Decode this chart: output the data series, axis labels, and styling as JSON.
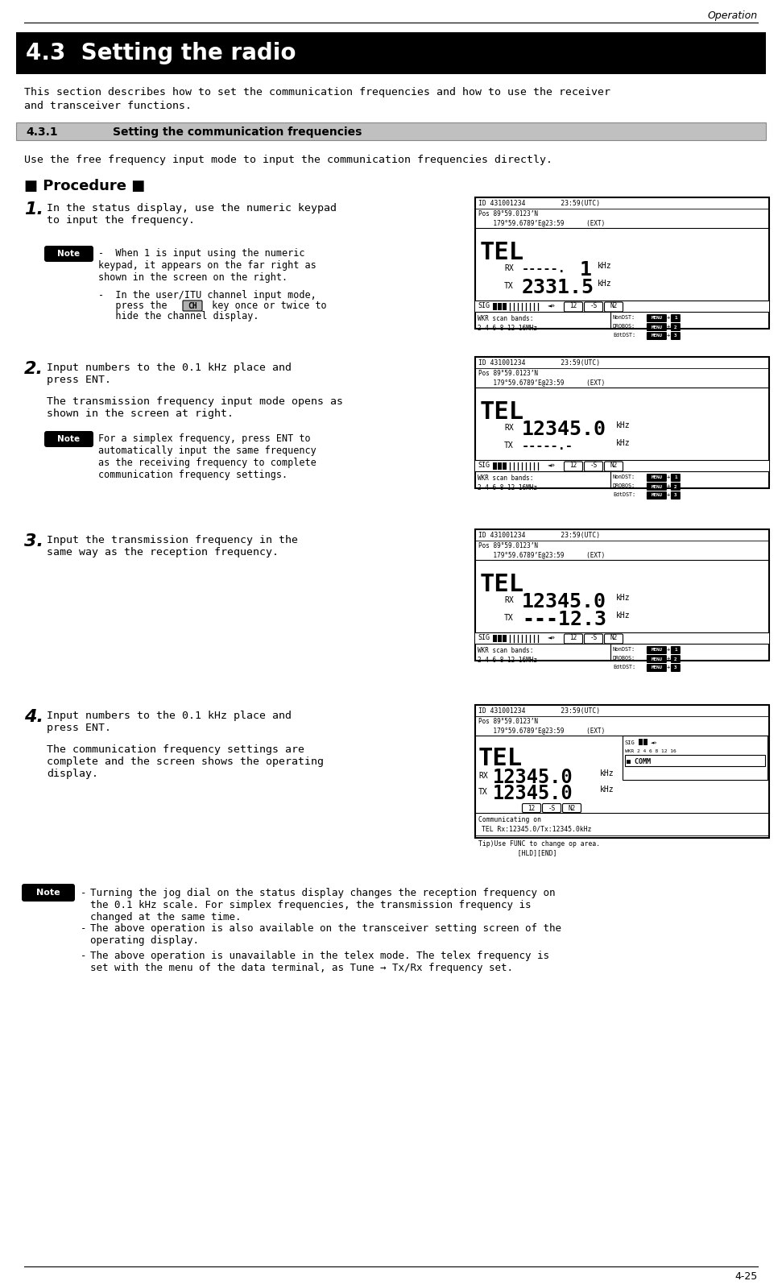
{
  "page_header": "Operation",
  "page_footer": "4-25",
  "section_title": "4.3  Setting the radio",
  "subsection_num": "4.3.1",
  "subsection_name": "Setting the communication frequencies",
  "intro_line1": "This section describes how to set the communication frequencies and how to use the receiver",
  "intro_line2": "and transceiver functions.",
  "use_text": "Use the free frequency input mode to input the communication frequencies directly.",
  "procedure_title": "■ Procedure ■",
  "steps": [
    {
      "number": "1",
      "main_text": "In the status display, use the numeric keypad\nto input the frequency.",
      "notes": [
        "When 1 is input using the numeric\nkeypad, it appears on the far right as\nshown in the screen on the right.",
        "In the user/ITU channel input mode,\npress the  CH  key once or twice to\nhide the channel display."
      ]
    },
    {
      "number": "2",
      "main_text": "Input numbers to the 0.1 kHz place and\npress ENT.",
      "sub_text": "The transmission frequency input mode opens as\nshown in the screen at right.",
      "notes": [
        "For a simplex frequency, press ENT to\nautomatically input the same frequency\nas the receiving frequency to complete\ncommunication frequency settings."
      ]
    },
    {
      "number": "3",
      "main_text": "Input the transmission frequency in the\nsame way as the reception frequency.",
      "notes": []
    },
    {
      "number": "4",
      "main_text": "Input numbers to the 0.1 kHz place and\npress ENT.",
      "sub_text": "The communication frequency settings are\ncomplete and the screen shows the operating\ndisplay.",
      "notes": []
    }
  ],
  "bottom_notes": [
    "Turning the jog dial on the status display changes the reception frequency on\nthe 0.1 kHz scale. For simplex frequencies, the transmission frequency is\nchanged at the same time.",
    "The above operation is also available on the transceiver setting screen of the\noperating display.",
    "The above operation is unavailable in the telex mode. The telex frequency is\nset with the menu of the data terminal, as Tune → Tx/Rx frequency set."
  ],
  "bg_color": "#ffffff"
}
